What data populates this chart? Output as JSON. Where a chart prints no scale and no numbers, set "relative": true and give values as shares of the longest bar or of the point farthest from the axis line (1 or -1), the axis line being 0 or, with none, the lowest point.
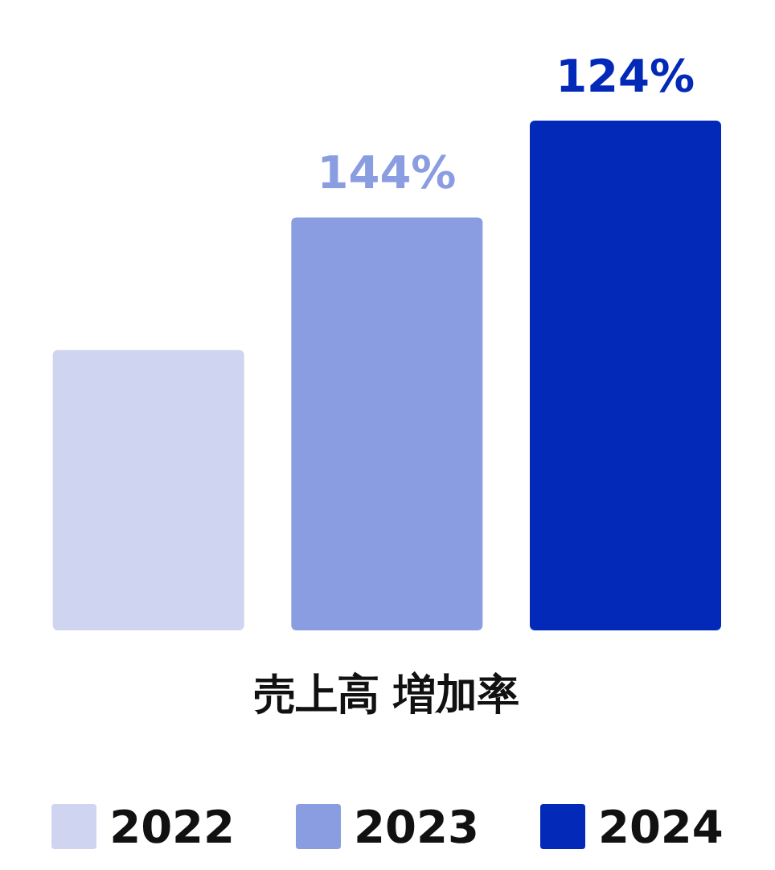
{
  "chart_data": {
    "type": "bar",
    "relative": true,
    "stacked": true,
    "xlabel": "売上高 増加率",
    "categories": [
      null,
      null,
      null
    ],
    "legend": "bottom",
    "series": [
      {
        "name": "2022",
        "color": "#cfd5f0",
        "values": [
          0.55,
          null,
          null
        ]
      },
      {
        "name": "2023",
        "color": "#8a9de0",
        "values": [
          null,
          0.81,
          null
        ]
      },
      {
        "name": "2024",
        "color": "#0229b8",
        "values": [
          null,
          null,
          1
        ]
      }
    ],
    "annotations": [
      "144%",
      "124%"
    ]
  }
}
